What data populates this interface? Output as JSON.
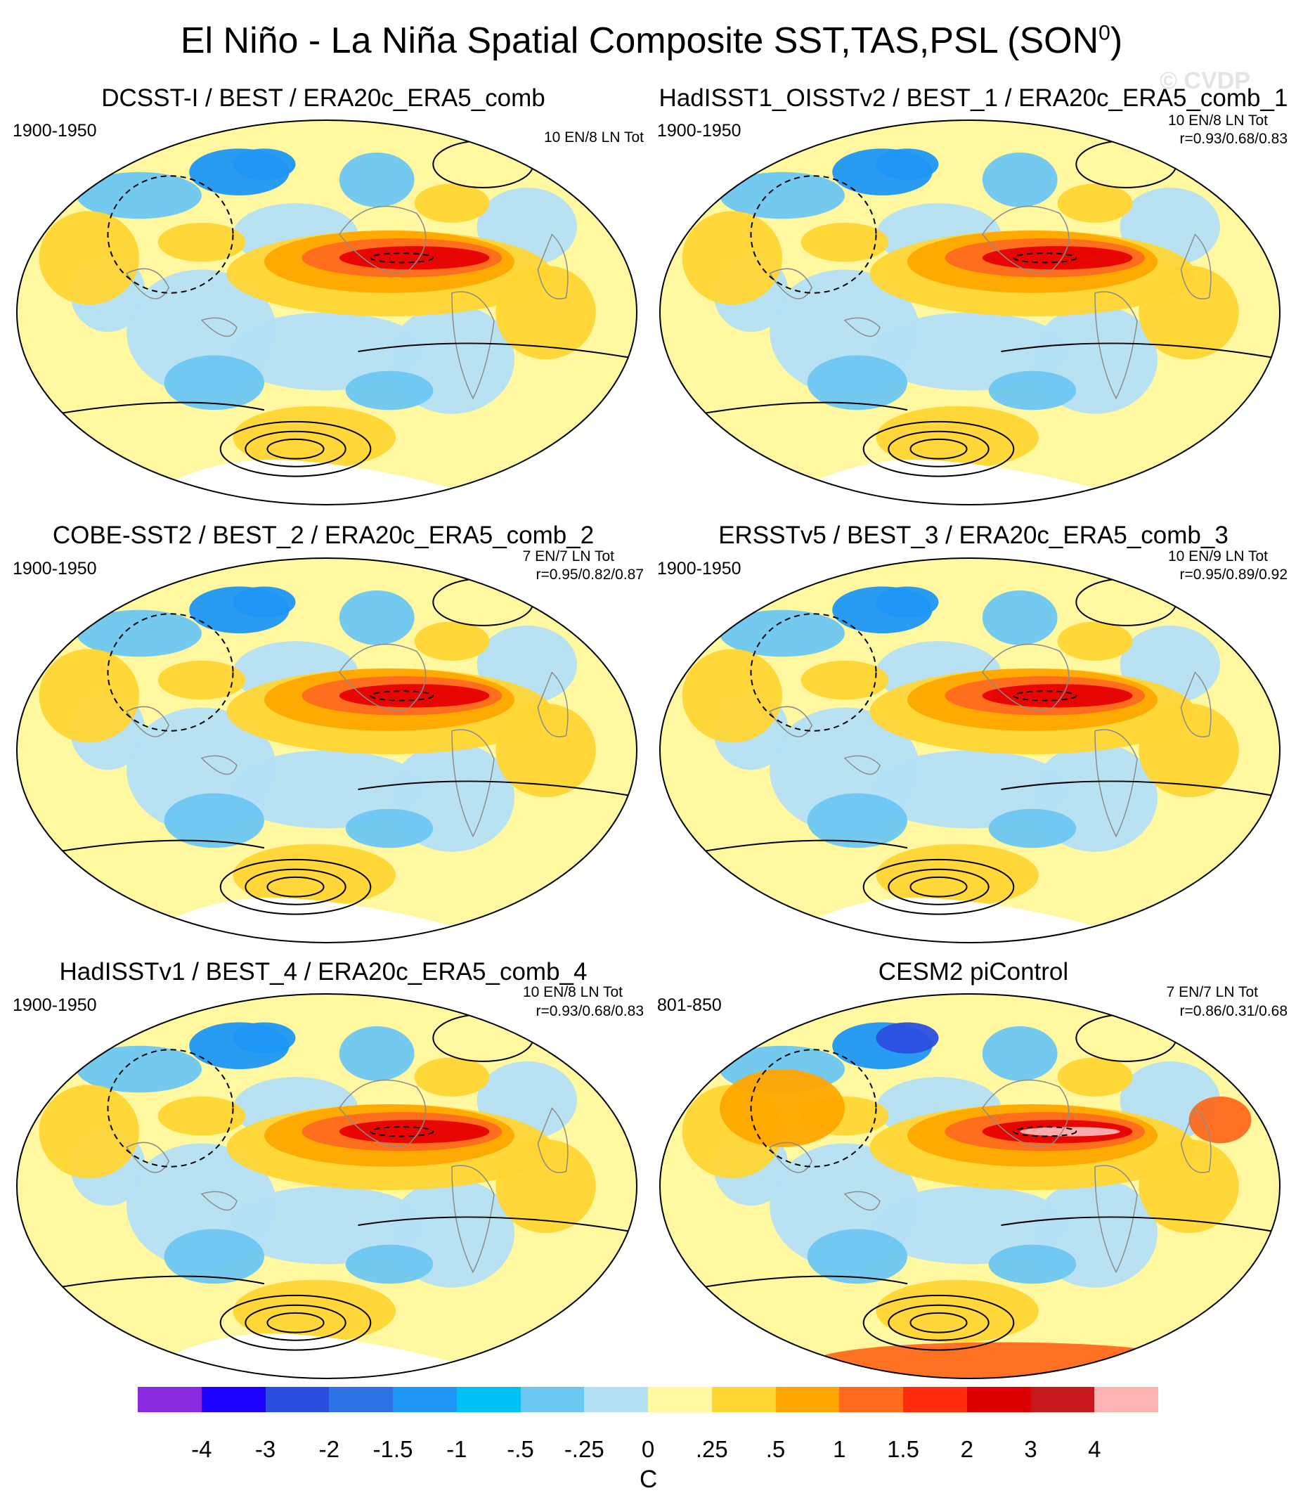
{
  "figure": {
    "title": "El Niño - La Niña Spatial Composite SST,TAS,PSL (SON",
    "title_superscript": "0",
    "title_suffix": ")",
    "watermark": "© CVDP"
  },
  "panels": [
    {
      "title": "DCSST-I / BEST / ERA20c_ERA5_comb",
      "period": "1900-1950",
      "count": "10 EN/8 LN Tot",
      "stats": ""
    },
    {
      "title": "HadISST1_OISSTv2 / BEST_1 / ERA20c_ERA5_comb_1",
      "period": "1900-1950",
      "count": "10 EN/8 LN Tot",
      "stats": "r=0.93/0.68/0.83"
    },
    {
      "title": "COBE-SST2 / BEST_2 / ERA20c_ERA5_comb_2",
      "period": "1900-1950",
      "count": "7 EN/7 LN Tot",
      "stats": "r=0.95/0.82/0.87"
    },
    {
      "title": "ERSSTv5 / BEST_3 / ERA20c_ERA5_comb_3",
      "period": "1900-1950",
      "count": "10 EN/9 LN Tot",
      "stats": "r=0.95/0.89/0.92"
    },
    {
      "title": "HadISSTv1 / BEST_4 / ERA20c_ERA5_comb_4",
      "period": "1900-1950",
      "count": "10 EN/8 LN Tot",
      "stats": "r=0.93/0.68/0.83"
    },
    {
      "title": "CESM2 piControl",
      "period": "801-850",
      "count": "7 EN/7 LN Tot",
      "stats": "r=0.86/0.31/0.68"
    }
  ],
  "colorbar": {
    "colors": [
      "#8a2be2",
      "#1e00ff",
      "#2a4fe0",
      "#2f72e8",
      "#1e96f5",
      "#00bff2",
      "#6cc6f2",
      "#b4e0f5",
      "#fff8a0",
      "#ffd534",
      "#ffa600",
      "#ff6a1e",
      "#ff2a0a",
      "#dc0000",
      "#c81a1e",
      "#ffb4b4"
    ],
    "ticks": [
      "-4",
      "-3",
      "-2",
      "-1.5",
      "-1",
      "-.5",
      "-.25",
      "0",
      ".25",
      ".5",
      "1",
      "1.5",
      "2",
      "3",
      "4"
    ],
    "unit": "C"
  },
  "map_style": {
    "ocean_background": "#fff8a0",
    "cool_light": "#b4e0f5",
    "cool_mid": "#6cc6f2",
    "cool_deep": "#1e96f5",
    "cool_strong": "#2a4fe0",
    "warm_light": "#ffd534",
    "warm_mid": "#ffa600",
    "warm_strong": "#ff6a1e",
    "warm_hot": "#e60000",
    "warm_extreme": "#ffb4b4",
    "antarctica": "#ffffff",
    "coastline": "#8c8c8c",
    "psl_contour": "#000000"
  }
}
